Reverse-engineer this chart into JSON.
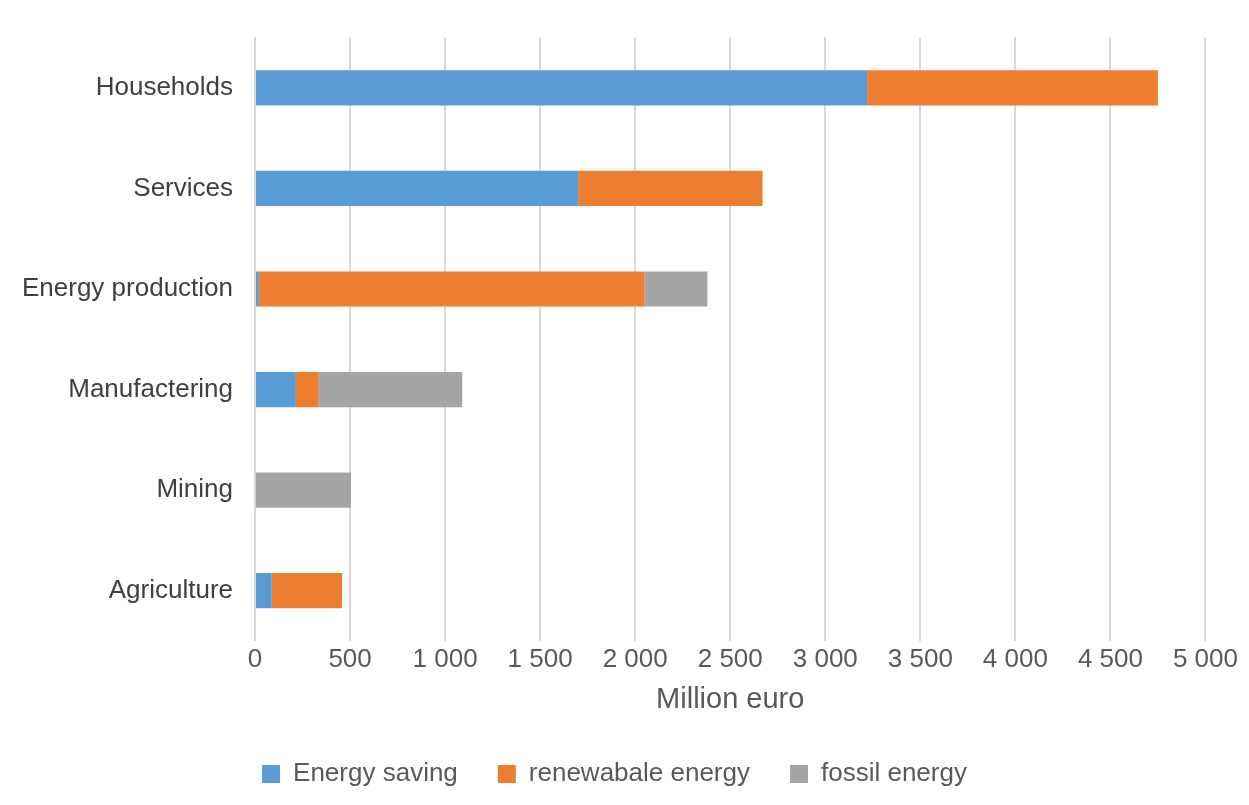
{
  "chart_data": {
    "type": "bar",
    "orientation": "horizontal",
    "stacked": true,
    "xlabel": "Million euro",
    "categories": [
      "Households",
      "Services",
      "Energy production",
      "Manufactering",
      "Mining",
      "Agriculture"
    ],
    "series": [
      {
        "name": "Energy saving",
        "color": "#5b9bd5",
        "values": [
          3220,
          1700,
          20,
          215,
          5,
          88
        ]
      },
      {
        "name": "renewabale energy",
        "color": "#ed7d31",
        "values": [
          1530,
          970,
          2030,
          120,
          0,
          370
        ]
      },
      {
        "name": "fossil energy",
        "color": "#a5a5a5",
        "values": [
          0,
          0,
          330,
          755,
          500,
          0
        ]
      }
    ],
    "xlim": [
      0,
      5000
    ],
    "xticks": [
      0,
      500,
      {
        "value": 1000,
        "label": "1 000"
      },
      {
        "value": 1500,
        "label": "1 500"
      },
      {
        "value": 2000,
        "label": "2 000"
      },
      {
        "value": 2500,
        "label": "2 500"
      },
      {
        "value": 3000,
        "label": "3 000"
      },
      {
        "value": 3500,
        "label": "3 500"
      },
      {
        "value": 4000,
        "label": "4 000"
      },
      {
        "value": 4500,
        "label": "4 500"
      },
      {
        "value": 5000,
        "label": "5 000"
      }
    ],
    "grid": "x",
    "legend": "bottom"
  }
}
